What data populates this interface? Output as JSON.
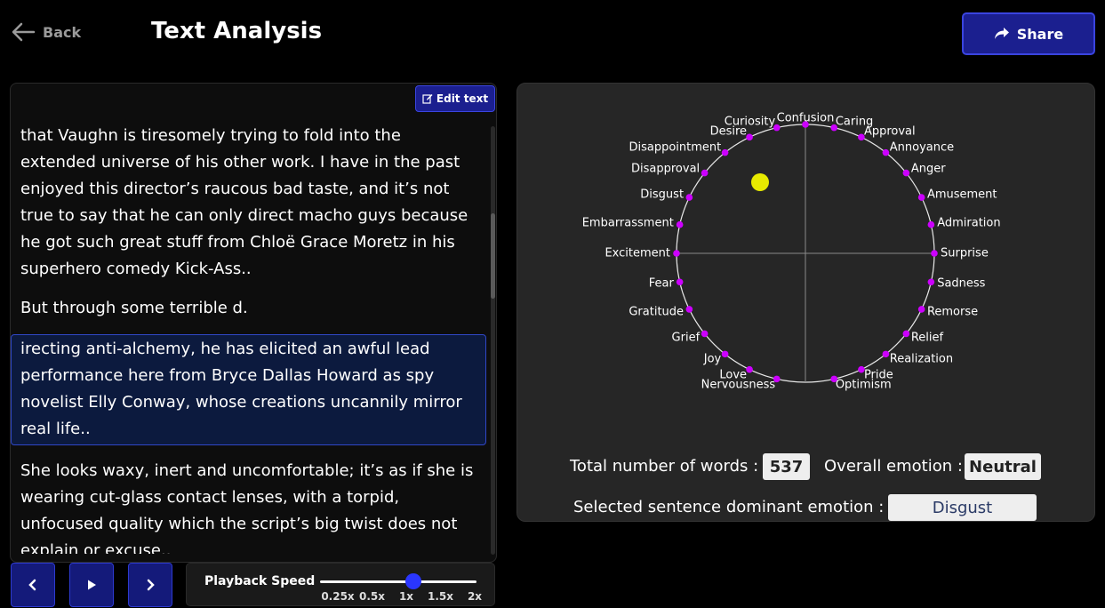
{
  "header": {
    "back_label": "Back",
    "title": "Text Analysis",
    "share_label": "Share"
  },
  "editor": {
    "edit_label": "Edit text",
    "sentences": [
      {
        "text": "that Vaughn is tiresomely trying to fold into the extended universe of his other work. I have in the past enjoyed this director’s raucous bad taste, and it’s not true to say that he can only direct macho guys because he got such great stuff from Chloë Grace Moretz in his superhero comedy Kick-Ass..",
        "selected": false
      },
      {
        "text": "But through some terrible d.",
        "selected": false
      },
      {
        "text": "irecting anti-alchemy, he has elicited an awful lead performance here from Bryce Dallas Howard as spy novelist Elly Conway, whose creations uncannily mirror real life..",
        "selected": true
      },
      {
        "text": "She looks waxy, inert and uncomfortable; it’s as if she is wearing cut-glass contact lenses, with a torpid, unfocused quality which the script’s big twist does not explain or excuse..",
        "selected": false
      }
    ]
  },
  "playback": {
    "speed_label": "Playback Speed",
    "speed_options": [
      "0.25x",
      "0.5x",
      "1x",
      "1.5x",
      "2x"
    ],
    "selected_speed": "1x",
    "icons": [
      "chevron-left-icon",
      "play-icon",
      "chevron-right-icon"
    ]
  },
  "emotion_wheel": {
    "emotions": [
      "Confusion",
      "Caring",
      "Approval",
      "Annoyance",
      "Anger",
      "Amusement",
      "Admiration",
      "Surprise",
      "Sadness",
      "Remorse",
      "Relief",
      "Realization",
      "Pride",
      "Optimism",
      "Nervousness",
      "Love",
      "Joy",
      "Grief",
      "Gratitude",
      "Fear",
      "Excitement",
      "Embarrassment",
      "Disgust",
      "Disapproval",
      "Disappointment",
      "Desire",
      "Curiosity"
    ],
    "marker_color": "#e7ea00",
    "dot_color": "#cc00ff"
  },
  "stats": {
    "total_words_label": "Total number of words :",
    "total_words": "537",
    "overall_emotion_label": "Overall emotion :",
    "overall_emotion": "Neutral",
    "dominant_label": "Selected sentence dominant emotion :",
    "dominant_emotion": "Disgust"
  },
  "colors": {
    "accent": "#1b1f8f",
    "accent_border": "#3a44e0",
    "selected_bg": "#0c1a3e"
  }
}
